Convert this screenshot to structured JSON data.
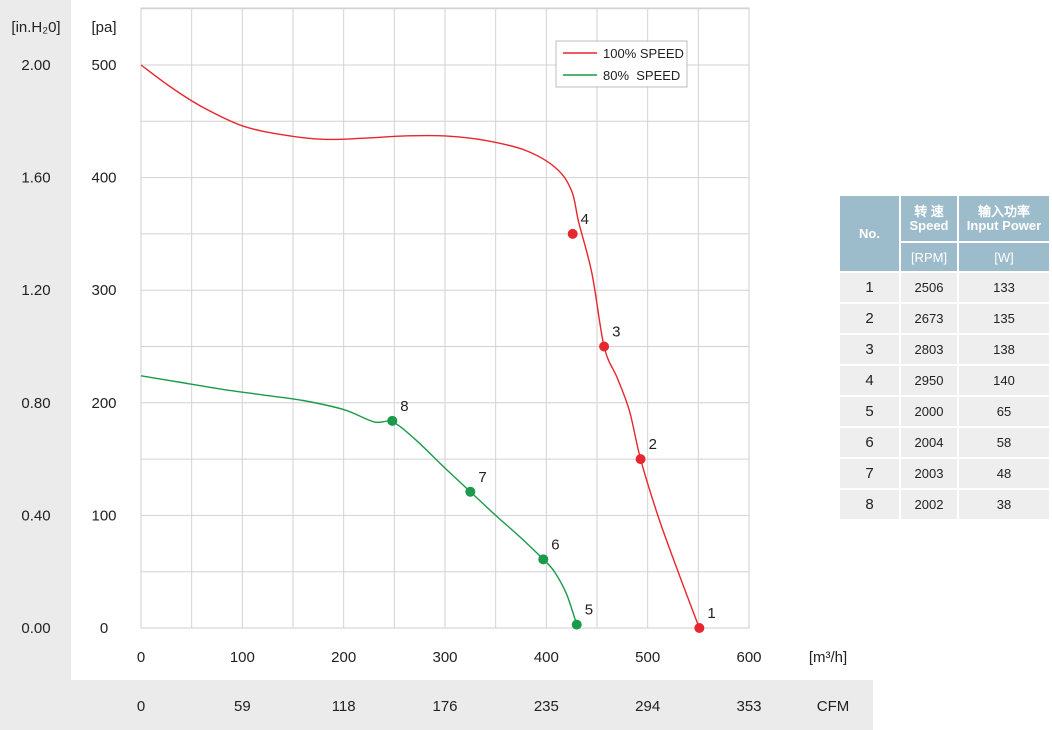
{
  "chart_data": {
    "type": "line",
    "x_unit": "[m³/h]",
    "y_unit_left": "[pa]",
    "y_unit_alt": "[in.H₂0]",
    "x_alt_unit": "CFM",
    "x_ticks": [
      0,
      100,
      200,
      300,
      400,
      500,
      600
    ],
    "x_alt_ticks": [
      "0",
      "59",
      "118",
      "176",
      "235",
      "294",
      "353"
    ],
    "y_ticks": [
      0,
      100,
      200,
      300,
      400,
      500
    ],
    "y_alt_ticks": [
      "0.00",
      "0.40",
      "0.80",
      "1.20",
      "1.60",
      "2.00"
    ],
    "xlim": [
      0,
      600
    ],
    "ylim": [
      0,
      500
    ],
    "grid": true,
    "legend_position": "top-right",
    "series": [
      {
        "name": "100% SPEED",
        "color": "#e8262d",
        "curve": [
          [
            0,
            500
          ],
          [
            30,
            480
          ],
          [
            60,
            463
          ],
          [
            100,
            446
          ],
          [
            140,
            438
          ],
          [
            180,
            434
          ],
          [
            220,
            435
          ],
          [
            260,
            437
          ],
          [
            300,
            437
          ],
          [
            340,
            433
          ],
          [
            380,
            424
          ],
          [
            410,
            408
          ],
          [
            425,
            388
          ],
          [
            432,
            360
          ],
          [
            445,
            315
          ],
          [
            457,
            250
          ],
          [
            470,
            222
          ],
          [
            482,
            193
          ],
          [
            493,
            150
          ],
          [
            510,
            100
          ],
          [
            530,
            50
          ],
          [
            551,
            0
          ]
        ],
        "points": [
          {
            "label": "1",
            "x": 551,
            "y": 0
          },
          {
            "label": "2",
            "x": 493,
            "y": 150
          },
          {
            "label": "3",
            "x": 457,
            "y": 250
          },
          {
            "label": "4",
            "x": 426,
            "y": 350
          }
        ]
      },
      {
        "name": "80%  SPEED",
        "color": "#1a9a4a",
        "curve": [
          [
            0,
            224
          ],
          [
            40,
            218
          ],
          [
            80,
            212
          ],
          [
            120,
            207
          ],
          [
            160,
            202
          ],
          [
            200,
            194
          ],
          [
            230,
            183
          ],
          [
            248,
            183
          ],
          [
            270,
            168
          ],
          [
            300,
            142
          ],
          [
            325,
            121
          ],
          [
            350,
            100
          ],
          [
            375,
            80
          ],
          [
            397,
            61
          ],
          [
            408,
            50
          ],
          [
            420,
            30
          ],
          [
            430,
            3
          ]
        ],
        "points": [
          {
            "label": "5",
            "x": 430,
            "y": 3
          },
          {
            "label": "6",
            "x": 397,
            "y": 61
          },
          {
            "label": "7",
            "x": 325,
            "y": 121
          },
          {
            "label": "8",
            "x": 248,
            "y": 184
          }
        ]
      }
    ]
  },
  "table": {
    "headers": {
      "no": "No.",
      "speed_cn": "转 速",
      "speed_en": "Speed",
      "power_cn": "输入功率",
      "power_en": "Input Power",
      "speed_unit": "[RPM]",
      "power_unit": "[W]"
    },
    "rows": [
      {
        "no": "1",
        "speed": "2506",
        "power": "133"
      },
      {
        "no": "2",
        "speed": "2673",
        "power": "135"
      },
      {
        "no": "3",
        "speed": "2803",
        "power": "138"
      },
      {
        "no": "4",
        "speed": "2950",
        "power": "140"
      },
      {
        "no": "5",
        "speed": "2000",
        "power": "65"
      },
      {
        "no": "6",
        "speed": "2004",
        "power": "58"
      },
      {
        "no": "7",
        "speed": "2003",
        "power": "48"
      },
      {
        "no": "8",
        "speed": "2002",
        "power": "38"
      }
    ]
  }
}
